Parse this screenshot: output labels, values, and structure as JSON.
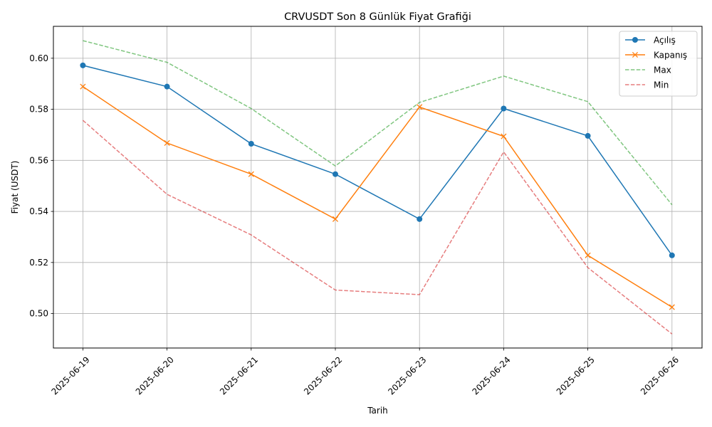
{
  "chart_data": {
    "type": "line",
    "title": "CRVUSDT Son 8 Günlük Fiyat Grafiği",
    "xlabel": "Tarih",
    "ylabel": "Fiyat (USDT)",
    "categories": [
      "2025-06-19",
      "2025-06-20",
      "2025-06-21",
      "2025-06-22",
      "2025-06-23",
      "2025-06-24",
      "2025-06-25",
      "2025-06-26"
    ],
    "ylim": [
      0.4865,
      0.6125
    ],
    "yticks": [
      0.5,
      0.52,
      0.54,
      0.56,
      0.58,
      0.6
    ],
    "ytick_labels": [
      "0.50",
      "0.52",
      "0.54",
      "0.56",
      "0.58",
      "0.60"
    ],
    "grid": true,
    "legend_position": "top-right",
    "series": [
      {
        "name": "Açılış",
        "color": "#1f77b4",
        "style": "solid",
        "marker": "circle",
        "values": [
          0.5972,
          0.5889,
          0.5665,
          0.5546,
          0.537,
          0.5803,
          0.5696,
          0.5228
        ]
      },
      {
        "name": "Kapanış",
        "color": "#ff7f0e",
        "style": "solid",
        "marker": "x",
        "values": [
          0.5889,
          0.5668,
          0.5546,
          0.537,
          0.5809,
          0.5694,
          0.5228,
          0.5025
        ]
      },
      {
        "name": "Max",
        "color": "#2ca02c",
        "style": "dashed",
        "marker": "none",
        "values": [
          0.6069,
          0.5984,
          0.5803,
          0.5578,
          0.5827,
          0.593,
          0.583,
          0.5426
        ]
      },
      {
        "name": "Min",
        "color": "#d62728",
        "style": "dashed",
        "marker": "none",
        "values": [
          0.5757,
          0.5467,
          0.5308,
          0.5092,
          0.5074,
          0.5633,
          0.518,
          0.492
        ]
      }
    ]
  }
}
